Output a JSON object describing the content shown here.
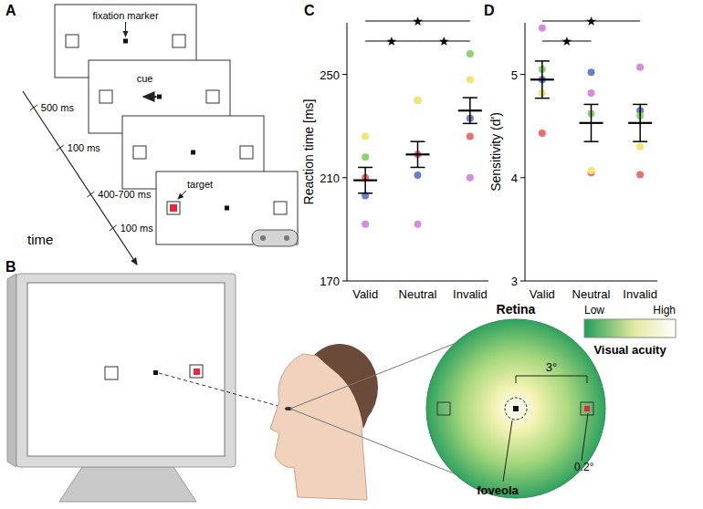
{
  "chart_data": [
    {
      "type": "scatter",
      "panel_label": "C",
      "ylabel": "Reaction time [ms]",
      "categories": [
        "Valid",
        "Neutral",
        "Invalid"
      ],
      "values": [
        209,
        219,
        236
      ],
      "errors": [
        5,
        5,
        5
      ],
      "series": [
        {
          "color": "#d98ad8",
          "values": [
            192,
            192,
            210
          ]
        },
        {
          "color": "#6f7dc4",
          "values": [
            203,
            211,
            233
          ]
        },
        {
          "color": "#ee6e6e",
          "values": [
            210,
            219,
            226
          ]
        },
        {
          "color": "#8ed46c",
          "values": [
            218,
            240,
            258
          ]
        },
        {
          "color": "#f5e46e",
          "values": [
            226,
            240,
            248
          ]
        }
      ],
      "ylim": [
        170,
        270
      ],
      "yticks": [
        170,
        210,
        250
      ],
      "grid": false,
      "significance": [
        {
          "from": 0,
          "to": 2,
          "label": "★"
        },
        {
          "from": 0,
          "to": 1,
          "label": "★"
        },
        {
          "from": 1,
          "to": 2,
          "label": "★"
        }
      ]
    },
    {
      "type": "scatter",
      "panel_label": "D",
      "ylabel": "Sensitivity (d')",
      "categories": [
        "Valid",
        "Neutral",
        "Invalid"
      ],
      "values": [
        4.95,
        4.53,
        4.53
      ],
      "errors": [
        0.18,
        0.18,
        0.18
      ],
      "series": [
        {
          "color": "#d98ad8",
          "values": [
            5.45,
            4.82,
            5.07
          ]
        },
        {
          "color": "#6f7dc4",
          "values": [
            4.95,
            5.02,
            4.65
          ]
        },
        {
          "color": "#ee6e6e",
          "values": [
            4.43,
            4.05,
            4.03
          ]
        },
        {
          "color": "#8ed46c",
          "values": [
            5.05,
            4.62,
            4.6
          ]
        },
        {
          "color": "#f5e46e",
          "values": [
            4.82,
            4.07,
            4.3
          ]
        }
      ],
      "ylim": [
        3,
        5.5
      ],
      "yticks": [
        3,
        4,
        5
      ],
      "grid": false,
      "significance": [
        {
          "from": 0,
          "to": 2,
          "label": "★"
        },
        {
          "from": 0,
          "to": 1,
          "label": "★"
        }
      ]
    }
  ],
  "panels": {
    "A": {
      "label": "A",
      "fixation_label": "fixation marker",
      "cue_label": "cue",
      "target_label": "target",
      "durations": [
        "500 ms",
        "100 ms",
        "400-700 ms",
        "100 ms"
      ],
      "time_label": "time"
    },
    "B": {
      "label": "B",
      "retina_title": "Retina",
      "eccentricity": "3°",
      "target_size": "0.2°",
      "foveola_label": "foveola",
      "colorbar": {
        "title": "Visual acuity",
        "low": "Low",
        "high": "High"
      }
    }
  }
}
